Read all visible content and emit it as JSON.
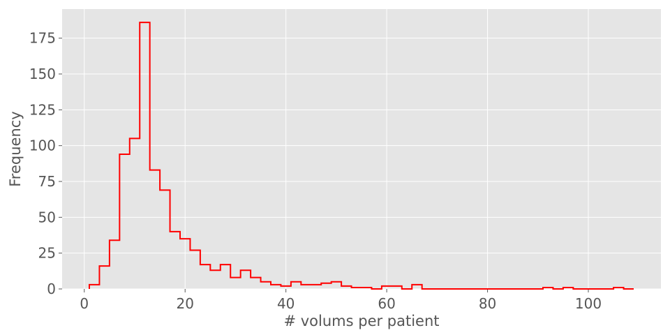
{
  "chart_data": {
    "type": "histogram",
    "xlabel": "# volums per patient",
    "ylabel": "Frequency",
    "xlim": [
      -4.4,
      114.4
    ],
    "ylim": [
      0,
      195.3
    ],
    "xticks": [
      0,
      20,
      40,
      60,
      80,
      100
    ],
    "yticks": [
      0,
      25,
      50,
      75,
      100,
      125,
      150,
      175
    ],
    "grid": true,
    "style": "ggplot",
    "histtype": "step",
    "colors": {
      "line": "#ff0000",
      "plot_background": "#e5e5e5",
      "grid": "#ffffff",
      "tick_label": "#555555"
    },
    "bin_start": 1,
    "bin_width": 2,
    "bin_counts": [
      3,
      16,
      34,
      94,
      105,
      186,
      83,
      69,
      40,
      35,
      27,
      17,
      13,
      17,
      8,
      13,
      8,
      5,
      3,
      2,
      5,
      3,
      3,
      4,
      5,
      2,
      1,
      1,
      0,
      2,
      2,
      0,
      3,
      0,
      0,
      0,
      0,
      0,
      0,
      0,
      0,
      0,
      0,
      0,
      0,
      1,
      0,
      1,
      0,
      0,
      0,
      0,
      1,
      0
    ]
  }
}
